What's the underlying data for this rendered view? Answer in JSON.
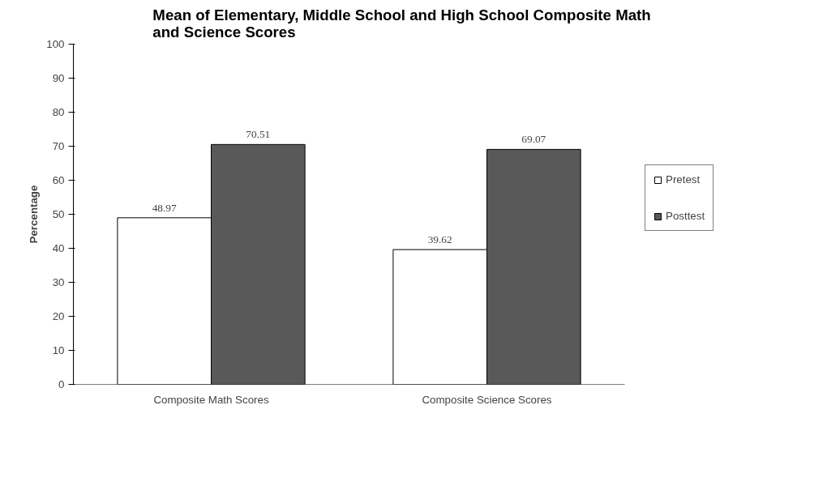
{
  "chart_data": {
    "type": "bar",
    "title": "Mean of Elementary, Middle School and High School Composite Math\nand Science Scores",
    "ylabel": "Percentage",
    "categories": [
      "Composite Math Scores",
      "Composite Science Scores"
    ],
    "series": [
      {
        "name": "Pretest",
        "color": "#ffffff",
        "values": [
          48.97,
          39.62
        ]
      },
      {
        "name": "Posttest",
        "color": "#595959",
        "values": [
          70.51,
          69.07
        ]
      }
    ],
    "ylim": [
      0,
      100
    ],
    "yticks": [
      0,
      10,
      20,
      30,
      40,
      50,
      60,
      70,
      80,
      90,
      100
    ],
    "grid": false,
    "legend": "right",
    "data_labels": true
  }
}
